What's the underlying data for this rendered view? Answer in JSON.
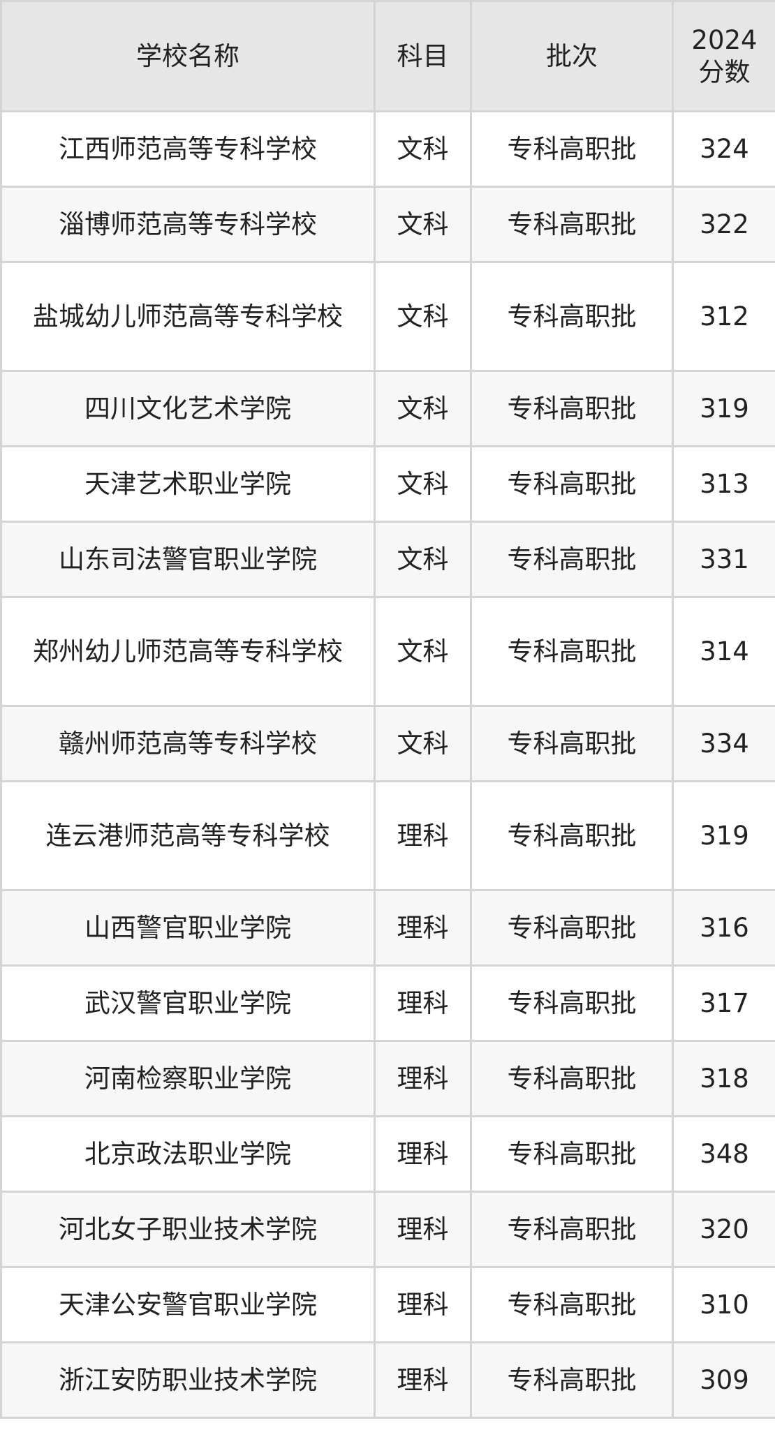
{
  "headers": [
    "学校名称",
    "科目",
    "批次",
    "2024\n分数"
  ],
  "header_score_line1": "2024",
  "header_score_line2": "分数",
  "rows": [
    {
      "school": "江西师范高等专科学校",
      "subject": "文科",
      "batch": "专科高职批",
      "score": "324"
    },
    {
      "school": "淄博师范高等专科学校",
      "subject": "文科",
      "batch": "专科高职批",
      "score": "322"
    },
    {
      "school": "盐城幼儿师范高等专科学校",
      "subject": "文科",
      "batch": "专科高职批",
      "score": "312"
    },
    {
      "school": "四川文化艺术学院",
      "subject": "文科",
      "batch": "专科高职批",
      "score": "319"
    },
    {
      "school": "天津艺术职业学院",
      "subject": "文科",
      "batch": "专科高职批",
      "score": "313"
    },
    {
      "school": "山东司法警官职业学院",
      "subject": "文科",
      "batch": "专科高职批",
      "score": "331"
    },
    {
      "school": "郑州幼儿师范高等专科学校",
      "subject": "文科",
      "batch": "专科高职批",
      "score": "314"
    },
    {
      "school": "赣州师范高等专科学校",
      "subject": "文科",
      "batch": "专科高职批",
      "score": "334"
    },
    {
      "school": "连云港师范高等专科学校",
      "subject": "理科",
      "batch": "专科高职批",
      "score": "319"
    },
    {
      "school": "山西警官职业学院",
      "subject": "理科",
      "batch": "专科高职批",
      "score": "316"
    },
    {
      "school": "武汉警官职业学院",
      "subject": "理科",
      "batch": "专科高职批",
      "score": "317"
    },
    {
      "school": "河南检察职业学院",
      "subject": "理科",
      "batch": "专科高职批",
      "score": "318"
    },
    {
      "school": "北京政法职业学院",
      "subject": "理科",
      "batch": "专科高职批",
      "score": "348"
    },
    {
      "school": "河北女子职业技术学院",
      "subject": "理科",
      "batch": "专科高职批",
      "score": "320"
    },
    {
      "school": "天津公安警官职业学院",
      "subject": "理科",
      "batch": "专科高职批",
      "score": "310"
    },
    {
      "school": "浙江安防职业技术学院",
      "subject": "理科",
      "batch": "专科高职批",
      "score": "309"
    }
  ]
}
